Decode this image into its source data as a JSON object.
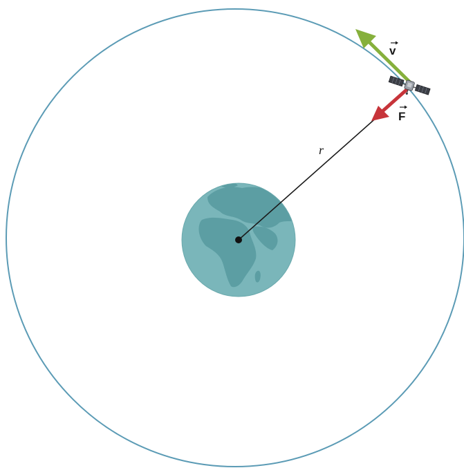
{
  "labels": {
    "velocity": "v",
    "force": "F",
    "radius": "r"
  },
  "colors": {
    "orbit": "#5b9bb5",
    "earth_ocean": "#7ab6ba",
    "earth_land": "#5c9ea3",
    "velocity_arrow": "#86b03c",
    "force_arrow": "#c7343a",
    "radius_line": "#1a1a1a"
  },
  "icons": {
    "planet": "earth-icon",
    "spacecraft": "satellite-icon"
  }
}
